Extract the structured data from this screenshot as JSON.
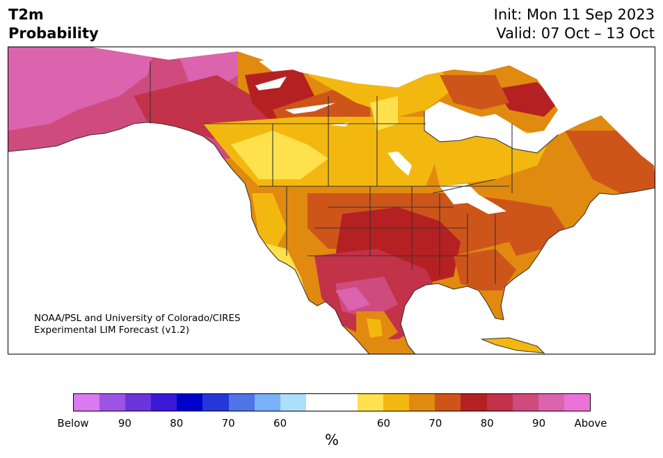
{
  "header": {
    "variable": "T2m",
    "product": "Probability",
    "init": "Init: Mon 11 Sep 2023",
    "valid": "Valid: 07 Oct – 13 Oct"
  },
  "map": {
    "credit_line1": "NOAA/PSL and University of Colorado/CIRES",
    "credit_line2": "Experimental LIM Forecast (v1.2)"
  },
  "colorbar": {
    "below_colors": [
      "#d97aef",
      "#9b55e2",
      "#6a35db",
      "#3a18d6",
      "#0000cc",
      "#2637d8",
      "#5073e5",
      "#78b1f5",
      "#addefb"
    ],
    "neutral_color": "#ffffff",
    "above_colors": [
      "#ffe04d",
      "#f3b80f",
      "#e18a10",
      "#cd5519",
      "#b52122",
      "#c23249",
      "#cf4b7e",
      "#dc63ae",
      "#ea73d6"
    ],
    "tick_labels": [
      "Below",
      "90",
      "80",
      "70",
      "60",
      "60",
      "70",
      "80",
      "90",
      "Above"
    ],
    "unit_label": "%"
  }
}
